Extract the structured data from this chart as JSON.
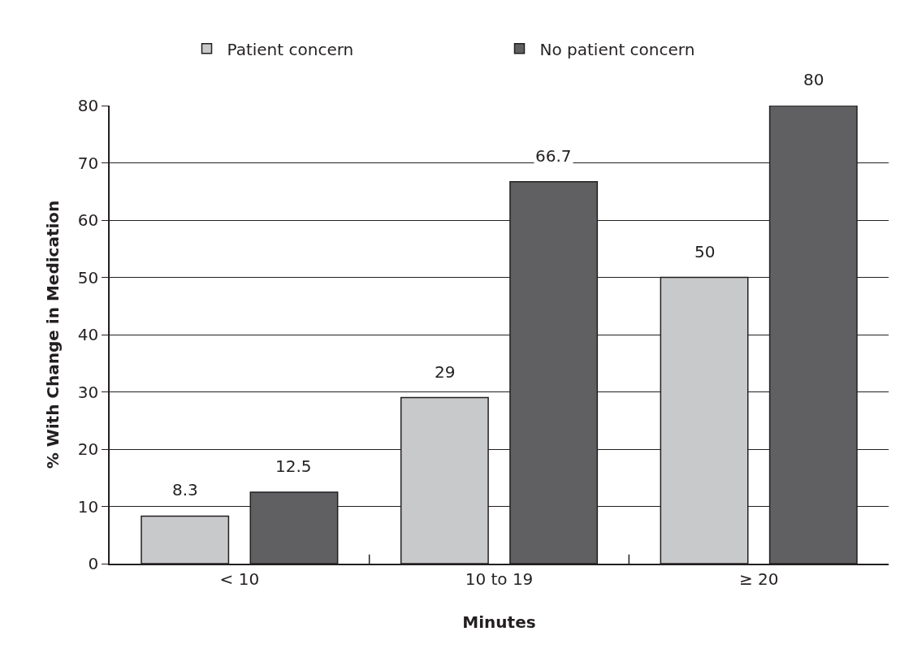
{
  "chart_data": {
    "type": "bar",
    "xlabel": "Minutes",
    "ylabel": "% With Change in Medication",
    "categories": [
      "< 10",
      "10 to 19",
      "≥ 20"
    ],
    "series": [
      {
        "name": "Patient concern",
        "color": "#c8c9cb",
        "values": [
          8.3,
          29,
          50
        ]
      },
      {
        "name": "No patient concern",
        "color": "#606062",
        "values": [
          12.5,
          66.7,
          80
        ]
      }
    ],
    "ylim": [
      0,
      80
    ],
    "yticks": [
      0,
      10,
      20,
      30,
      40,
      50,
      60,
      70,
      80
    ],
    "grid": "y",
    "legend": "top",
    "data_labels": true
  }
}
